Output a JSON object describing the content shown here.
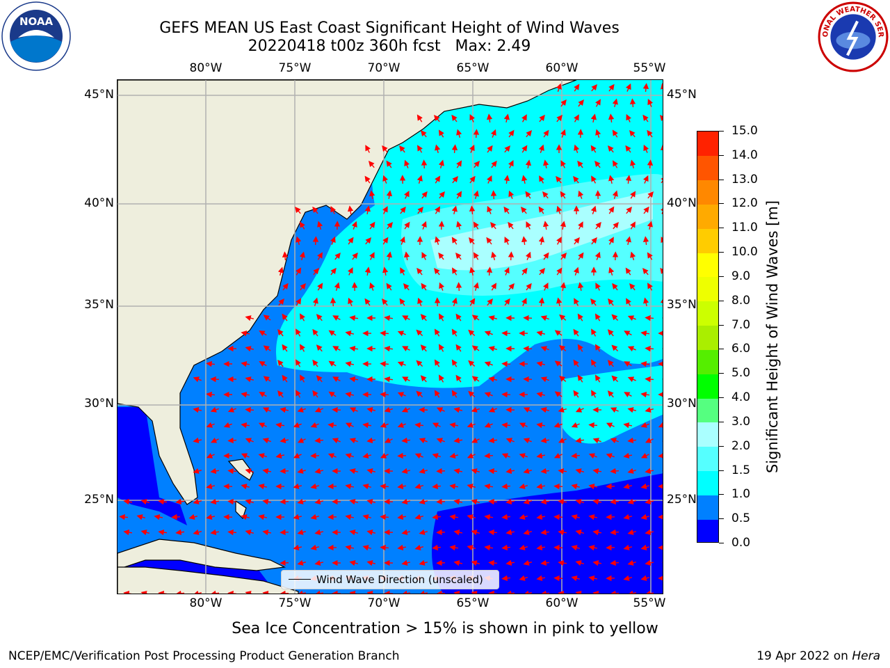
{
  "header": {
    "title_line1": "GEFS MEAN US East Coast Significant Height of Wind Waves",
    "title_line2": "20220418 t00z 360h fcst   Max: 2.49"
  },
  "logos": {
    "left": "noaa-logo",
    "right": "national-weather-service-logo",
    "left_text": "NOAA",
    "right_text": "NATIONAL WEATHER SERVICE"
  },
  "map": {
    "lon_labels": [
      "80°W",
      "75°W",
      "70°W",
      "65°W",
      "60°W",
      "55°W"
    ],
    "lat_labels": [
      "45°N",
      "40°N",
      "35°N",
      "30°N",
      "25°N"
    ],
    "legend_label": "Wind Wave Direction (unscaled)",
    "land_color": "#eeeedd",
    "grid_color": "#b0b0b0",
    "arrow_color": "#ff0000"
  },
  "colorbar": {
    "title": "Significant Height of Wind Waves [m]",
    "tick_labels": [
      "15.0",
      "14.0",
      "13.0",
      "12.0",
      "11.0",
      "10.0",
      "9.0",
      "8.0",
      "7.0",
      "6.0",
      "5.0",
      "4.0",
      "3.0",
      "2.0",
      "1.5",
      "1.0",
      "0.5",
      "0.0"
    ],
    "colors": [
      "#0000ff",
      "#0080ff",
      "#00ffff",
      "#55ffff",
      "#aaffff",
      "#55ff80",
      "#00ff00",
      "#55ee00",
      "#aaee00",
      "#ccff00",
      "#eeff00",
      "#ffff00",
      "#ffcc00",
      "#ffaa00",
      "#ff8800",
      "#ff5500",
      "#ff2200"
    ]
  },
  "footer": {
    "ice_note": "Sea Ice Concentration > 15% is shown in pink to yellow",
    "credit": "NCEP/EMC/Verification Post Processing Product Generation Branch",
    "date_prefix": "19 Apr 2022 on",
    "machine": "Hera"
  }
}
